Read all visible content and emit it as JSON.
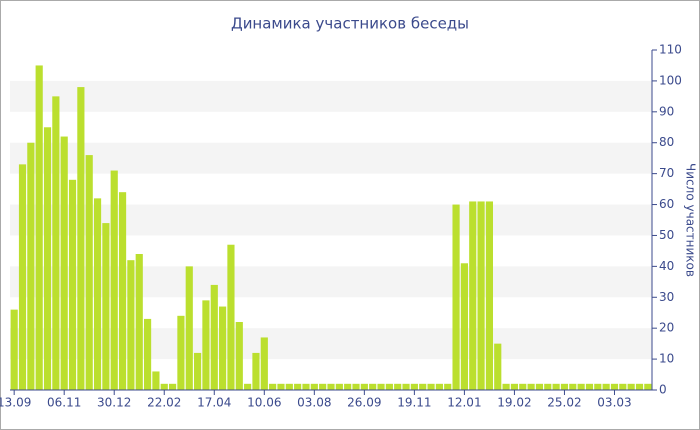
{
  "chart_data": {
    "type": "bar",
    "title": "Динамика участников беседы",
    "y_label": "Число участников",
    "categories": [
      "13.09",
      null,
      null,
      null,
      null,
      null,
      "06.11",
      null,
      null,
      null,
      null,
      null,
      "30.12",
      null,
      null,
      null,
      null,
      null,
      "22.02",
      null,
      null,
      null,
      null,
      null,
      "17.04",
      null,
      null,
      null,
      null,
      null,
      "10.06",
      null,
      null,
      null,
      null,
      null,
      "03.08",
      null,
      null,
      null,
      null,
      null,
      "26.09",
      null,
      null,
      null,
      null,
      null,
      "19.11",
      null,
      null,
      null,
      null,
      null,
      "12.01",
      null,
      null,
      null,
      null,
      null,
      "19.02",
      null,
      null,
      null,
      null,
      null,
      "25.02",
      null,
      null,
      null,
      null,
      null,
      "03.03",
      null,
      null,
      null,
      null
    ],
    "values": [
      26,
      73,
      80,
      105,
      85,
      95,
      82,
      68,
      98,
      76,
      62,
      54,
      71,
      64,
      42,
      44,
      23,
      6,
      2,
      2,
      24,
      40,
      12,
      29,
      34,
      27,
      47,
      22,
      2,
      12,
      17,
      2,
      2,
      2,
      2,
      2,
      2,
      2,
      2,
      2,
      2,
      2,
      2,
      2,
      2,
      2,
      2,
      2,
      2,
      2,
      2,
      2,
      2,
      60,
      41,
      61,
      61,
      61,
      15,
      2,
      2,
      2,
      2,
      2,
      2,
      2,
      2,
      2,
      2,
      2,
      2,
      2,
      2,
      2,
      2,
      2,
      2
    ],
    "color": "#bbdf2e",
    "ylim": [
      0,
      110
    ],
    "yticks": [
      0,
      10,
      20,
      30,
      40,
      50,
      60,
      70,
      80,
      90,
      100,
      110
    ],
    "grid": true,
    "y_axis_side": "right"
  }
}
